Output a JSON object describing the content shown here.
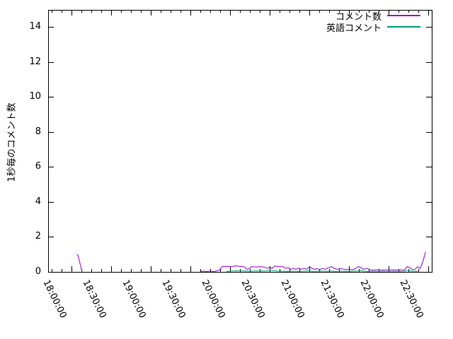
{
  "window": {
    "background": "#ffffff",
    "frame_color": "#000000"
  },
  "chart_data": {
    "type": "line",
    "title": "",
    "xlabel": "",
    "ylabel": "1秒毎のコメント数",
    "ylim": [
      0,
      15
    ],
    "ytick_values": [
      0,
      2,
      4,
      6,
      8,
      10,
      12,
      14
    ],
    "ytick_labels": [
      "0",
      "2",
      "4",
      "6",
      "8",
      "10",
      "12",
      "14"
    ],
    "xtick_labels": [
      "18:00:00",
      "18:30:00",
      "19:00:00",
      "19:30:00",
      "20:00:00",
      "20:30:00",
      "21:00:00",
      "21:30:00",
      "22:00:00",
      "22:30:00"
    ],
    "x_major_interval_minutes": 30,
    "x_minor_interval_minutes": 7.5,
    "grid": false,
    "legend_position": "top-right-inside",
    "series": [
      {
        "name": "コメント数",
        "color": "#9400d3",
        "segments": [
          [
            [
              "18:04",
              1
            ],
            [
              "18:05",
              0.95
            ],
            [
              "18:08",
              0
            ]
          ],
          [
            [
              "19:38",
              0.02
            ],
            [
              "19:40",
              0.05
            ],
            [
              "19:42",
              0.02
            ],
            [
              "19:45",
              0.05
            ],
            [
              "19:48",
              0.02
            ],
            [
              "19:52",
              0.1
            ],
            [
              "19:54",
              0.3
            ],
            [
              "19:58",
              0.32
            ],
            [
              "20:02",
              0.3
            ],
            [
              "20:04",
              0.35
            ],
            [
              "20:08",
              0.3
            ],
            [
              "20:10",
              0.32
            ],
            [
              "20:13",
              0.15
            ],
            [
              "20:15",
              0.2
            ],
            [
              "20:16",
              0.3
            ],
            [
              "20:20",
              0.28
            ],
            [
              "20:22",
              0.3
            ],
            [
              "20:26",
              0.28
            ],
            [
              "20:28",
              0.2
            ],
            [
              "20:30",
              0.25
            ],
            [
              "20:32",
              0.2
            ],
            [
              "20:34",
              0.35
            ],
            [
              "20:36",
              0.3
            ],
            [
              "20:40",
              0.3
            ],
            [
              "20:42",
              0.2
            ],
            [
              "20:44",
              0.25
            ],
            [
              "20:46",
              0.15
            ],
            [
              "20:48",
              0.2
            ],
            [
              "20:50",
              0.15
            ],
            [
              "20:52",
              0.22
            ],
            [
              "20:54",
              0.15
            ],
            [
              "20:56",
              0.2
            ],
            [
              "20:58",
              0.15
            ],
            [
              "21:00",
              0.3
            ],
            [
              "21:02",
              0.2
            ],
            [
              "21:04",
              0.15
            ],
            [
              "21:06",
              0.18
            ],
            [
              "21:08",
              0.12
            ],
            [
              "21:10",
              0.2
            ],
            [
              "21:12",
              0.15
            ],
            [
              "21:15",
              0.25
            ],
            [
              "21:17",
              0.3
            ],
            [
              "21:19",
              0.2
            ],
            [
              "21:21",
              0.15
            ],
            [
              "21:24",
              0.2
            ],
            [
              "21:26",
              0.15
            ],
            [
              "21:28",
              0.12
            ],
            [
              "21:30",
              0.15
            ],
            [
              "21:33",
              0.12
            ],
            [
              "21:35",
              0.2
            ],
            [
              "21:37",
              0.3
            ],
            [
              "21:39",
              0.25
            ],
            [
              "21:41",
              0.15
            ],
            [
              "21:44",
              0.2
            ],
            [
              "21:46",
              0.12
            ],
            [
              "21:48",
              0.1
            ],
            [
              "21:52",
              0.12
            ],
            [
              "21:55",
              0.1
            ],
            [
              "21:58",
              0.12
            ],
            [
              "22:00",
              0.1
            ],
            [
              "22:03",
              0.12
            ],
            [
              "22:06",
              0.1
            ],
            [
              "22:09",
              0.12
            ],
            [
              "22:12",
              0.1
            ],
            [
              "22:14",
              0.3
            ],
            [
              "22:16",
              0.25
            ],
            [
              "22:18",
              0.12
            ],
            [
              "22:20",
              0.15
            ],
            [
              "22:22",
              0.3
            ],
            [
              "22:24",
              0.2
            ],
            [
              "22:26",
              0.6
            ],
            [
              "22:28",
              1.15
            ]
          ]
        ]
      },
      {
        "name": "英語コメント",
        "color": "#009e73",
        "segments": [
          [
            [
              "19:57",
              0
            ],
            [
              "20:00",
              0.05
            ],
            [
              "20:04",
              0.06
            ],
            [
              "20:08",
              0.05
            ],
            [
              "20:12",
              0.06
            ],
            [
              "20:16",
              0.04
            ],
            [
              "20:20",
              0.06
            ],
            [
              "20:24",
              0.05
            ],
            [
              "20:28",
              0.06
            ],
            [
              "20:32",
              0.08
            ],
            [
              "20:36",
              0.05
            ],
            [
              "20:40",
              0.04
            ],
            [
              "20:44",
              0.03
            ],
            [
              "20:48",
              0.05
            ],
            [
              "20:52",
              0.03
            ],
            [
              "20:56",
              0.05
            ],
            [
              "21:00",
              0.06
            ],
            [
              "21:04",
              0.03
            ],
            [
              "21:08",
              0.05
            ],
            [
              "21:12",
              0.04
            ],
            [
              "21:16",
              0.05
            ],
            [
              "21:20",
              0.03
            ],
            [
              "21:24",
              0.05
            ],
            [
              "21:28",
              0.03
            ],
            [
              "21:32",
              0.04
            ],
            [
              "21:36",
              0.05
            ],
            [
              "21:40",
              0.06
            ],
            [
              "21:44",
              0.03
            ],
            [
              "21:48",
              0.04
            ],
            [
              "21:52",
              0.03
            ],
            [
              "21:56",
              0.04
            ],
            [
              "22:00",
              0.03
            ],
            [
              "22:04",
              0.04
            ],
            [
              "22:08",
              0.03
            ],
            [
              "22:12",
              0.04
            ],
            [
              "22:14",
              0.08
            ],
            [
              "22:16",
              0.06
            ],
            [
              "22:18",
              0.04
            ],
            [
              "22:20",
              0.05
            ],
            [
              "22:22",
              0
            ]
          ]
        ]
      }
    ]
  }
}
